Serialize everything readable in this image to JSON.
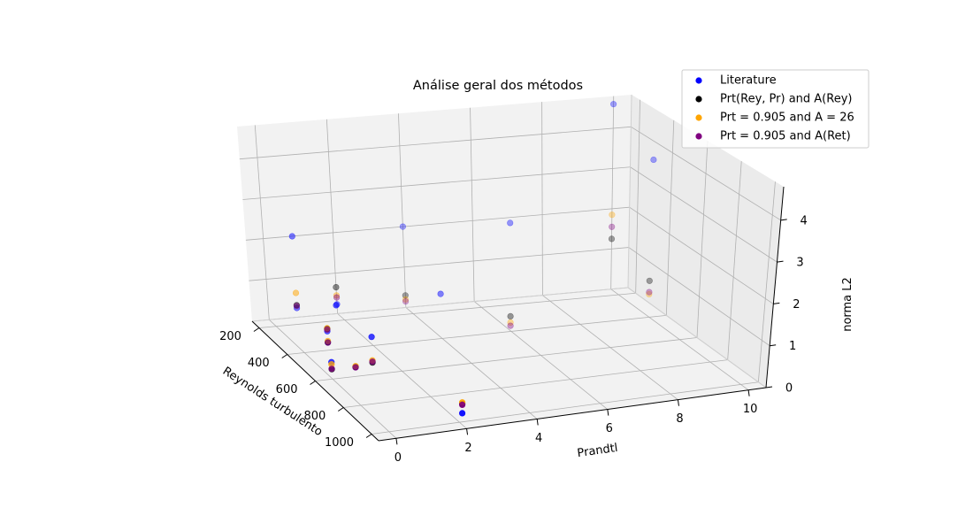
{
  "chart_data": {
    "type": "scatter",
    "projection": "3d",
    "title": "Análise geral dos métodos",
    "xlabel": "Reynolds turbulento",
    "ylabel": "Prandtl",
    "zlabel": "norma L2",
    "xlim": [
      150,
      1050
    ],
    "ylim": [
      -0.5,
      10.5
    ],
    "zlim": [
      0,
      4.8
    ],
    "x_ticks": [
      "200",
      "400",
      "600",
      "800",
      "1000"
    ],
    "y_ticks": [
      "0",
      "2",
      "4",
      "6",
      "8",
      "10"
    ],
    "z_ticks": [
      "0",
      "1",
      "2",
      "3",
      "4"
    ],
    "grid": true,
    "legend_position": "top-right",
    "series": [
      {
        "name": "Literature",
        "color": "#0000ff",
        "points": [
          {
            "x": 180,
            "y": 0.71,
            "z": 0.33
          },
          {
            "x": 180,
            "y": 0.71,
            "z": 2.09
          },
          {
            "x": 395,
            "y": 0.71,
            "z": 0.17
          },
          {
            "x": 395,
            "y": 0.71,
            "z": 0.43
          },
          {
            "x": 395,
            "y": 1.0,
            "z": 1.02
          },
          {
            "x": 590,
            "y": 0.71,
            "z": 0.18
          },
          {
            "x": 590,
            "y": 0.025,
            "z": 0.35
          },
          {
            "x": 640,
            "y": 1.0,
            "z": 0.98
          },
          {
            "x": 150,
            "y": 2.0,
            "z": 0.23
          },
          {
            "x": 150,
            "y": 4.0,
            "z": 2.0
          },
          {
            "x": 150,
            "y": 10.0,
            "z": 4.6
          },
          {
            "x": 395,
            "y": 4.0,
            "z": 1.05
          },
          {
            "x": 395,
            "y": 6.0,
            "z": 2.6
          },
          {
            "x": 395,
            "y": 10.0,
            "z": 3.85
          },
          {
            "x": 1020,
            "y": 2.0,
            "z": 0.25
          }
        ]
      },
      {
        "name": "Prt(Rey, Pr) and A(Rey)",
        "color": "#000000",
        "points": [
          {
            "x": 180,
            "y": 0.71,
            "z": 0.4
          },
          {
            "x": 395,
            "y": 0.71,
            "z": 0.17
          },
          {
            "x": 395,
            "y": 0.71,
            "z": 0.49
          },
          {
            "x": 590,
            "y": 0.71,
            "z": 0.18
          },
          {
            "x": 590,
            "y": 0.025,
            "z": 0.19
          },
          {
            "x": 640,
            "y": 1.0,
            "z": 0.4
          },
          {
            "x": 150,
            "y": 2.0,
            "z": 0.65
          },
          {
            "x": 150,
            "y": 4.0,
            "z": 0.3
          },
          {
            "x": 150,
            "y": 10.0,
            "z": 1.25
          },
          {
            "x": 395,
            "y": 6.0,
            "z": 0.35
          },
          {
            "x": 395,
            "y": 10.0,
            "z": 0.88
          },
          {
            "x": 1020,
            "y": 2.0,
            "z": 0.45
          }
        ]
      },
      {
        "name": "Prt = 0.905 and A = 26",
        "color": "#ffa500",
        "points": [
          {
            "x": 180,
            "y": 0.71,
            "z": 0.7
          },
          {
            "x": 395,
            "y": 0.71,
            "z": 0.2
          },
          {
            "x": 395,
            "y": 0.71,
            "z": 0.5
          },
          {
            "x": 590,
            "y": 0.71,
            "z": 0.2
          },
          {
            "x": 590,
            "y": 0.025,
            "z": 0.3
          },
          {
            "x": 640,
            "y": 1.0,
            "z": 0.45
          },
          {
            "x": 150,
            "y": 2.0,
            "z": 0.45
          },
          {
            "x": 150,
            "y": 4.0,
            "z": 0.2
          },
          {
            "x": 150,
            "y": 10.0,
            "z": 1.85
          },
          {
            "x": 395,
            "y": 6.0,
            "z": 0.2
          },
          {
            "x": 395,
            "y": 10.0,
            "z": 0.55
          },
          {
            "x": 1020,
            "y": 2.0,
            "z": 0.48
          }
        ]
      },
      {
        "name": "Prt = 0.905 and A(Ret)",
        "color": "#800080",
        "points": [
          {
            "x": 180,
            "y": 0.71,
            "z": 0.38
          },
          {
            "x": 395,
            "y": 0.71,
            "z": 0.16
          },
          {
            "x": 395,
            "y": 0.71,
            "z": 0.47
          },
          {
            "x": 590,
            "y": 0.71,
            "z": 0.17
          },
          {
            "x": 590,
            "y": 0.025,
            "z": 0.2
          },
          {
            "x": 640,
            "y": 1.0,
            "z": 0.42
          },
          {
            "x": 150,
            "y": 2.0,
            "z": 0.4
          },
          {
            "x": 150,
            "y": 4.0,
            "z": 0.15
          },
          {
            "x": 150,
            "y": 10.0,
            "z": 1.55
          },
          {
            "x": 395,
            "y": 6.0,
            "z": 0.12
          },
          {
            "x": 395,
            "y": 10.0,
            "z": 0.6
          },
          {
            "x": 1020,
            "y": 2.0,
            "z": 0.43
          }
        ]
      }
    ]
  }
}
